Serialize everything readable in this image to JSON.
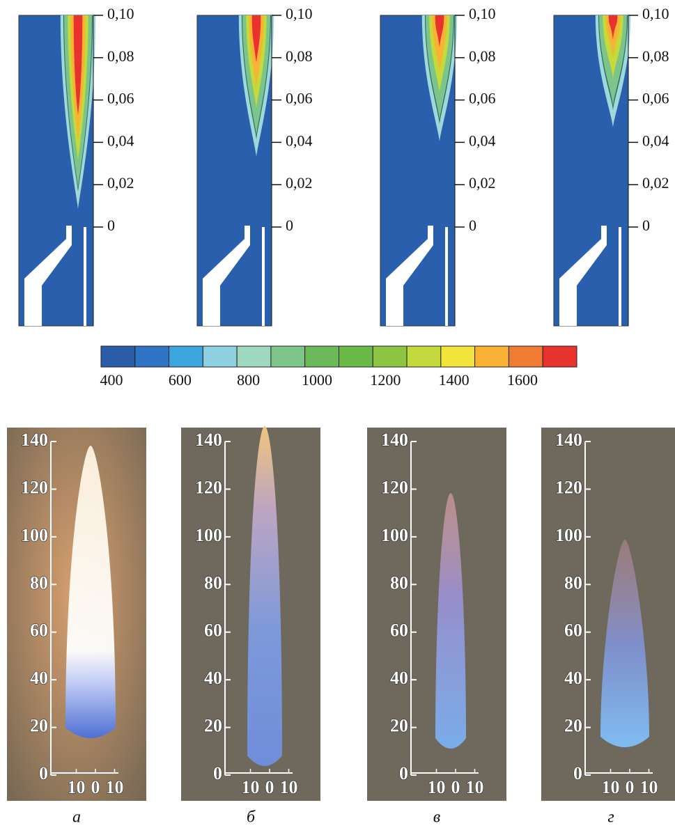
{
  "simulations": {
    "yticks": [
      {
        "value": 0,
        "label": "0"
      },
      {
        "value": 0.02,
        "label": "0,02"
      },
      {
        "value": 0.04,
        "label": "0,04"
      },
      {
        "value": 0.06,
        "label": "0,06"
      },
      {
        "value": 0.08,
        "label": "0,08"
      },
      {
        "value": 0.1,
        "label": "0,10"
      }
    ]
  },
  "colorbar": {
    "ticks": [
      400,
      600,
      800,
      1000,
      1200,
      1400,
      1600
    ],
    "colors": [
      "#2a5caa",
      "#2f74c4",
      "#3ea6df",
      "#8ecfe0",
      "#9fd8c0",
      "#7cc48a",
      "#6cb95a",
      "#6ab845",
      "#8ec444",
      "#c4d93a",
      "#f2e43a",
      "#f9b233",
      "#f07b32",
      "#e8322e"
    ]
  },
  "photos": {
    "yticks": [
      0,
      20,
      40,
      60,
      80,
      100,
      120,
      140
    ],
    "xticks": [
      {
        "value": -10,
        "label": "10"
      },
      0,
      10
    ]
  },
  "panel_labels": [
    "а",
    "б",
    "в",
    "г"
  ]
}
